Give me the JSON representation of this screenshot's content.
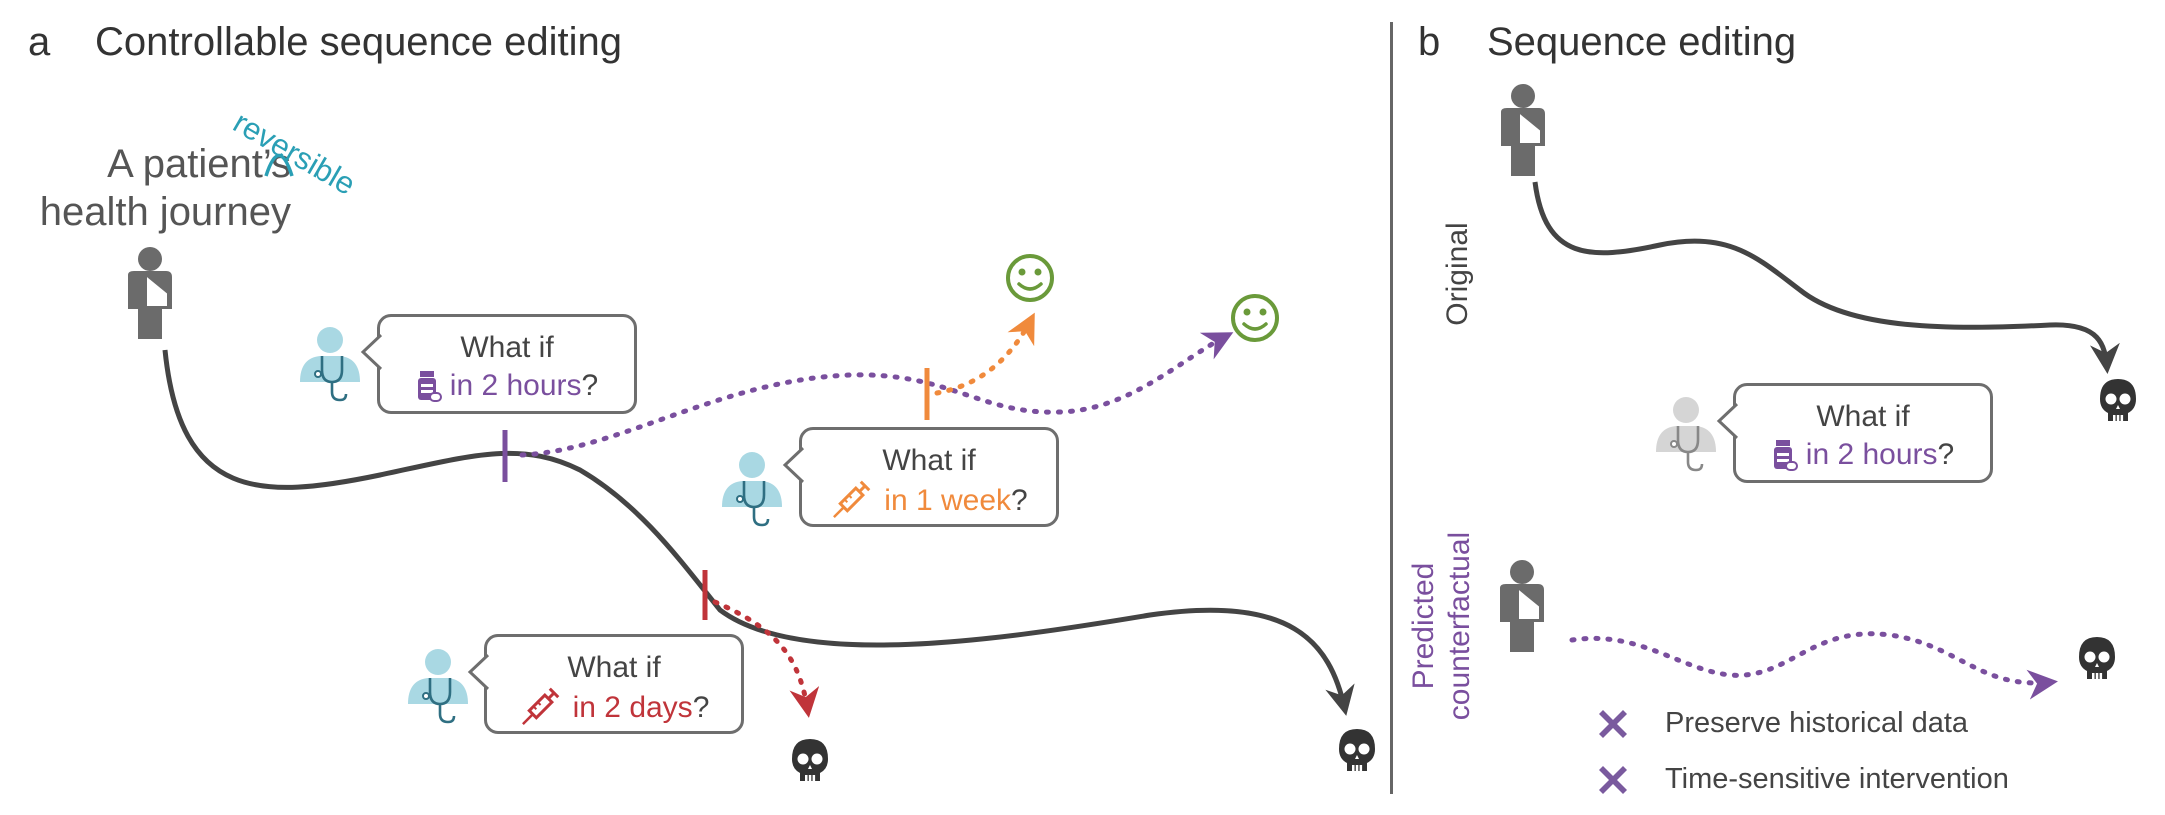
{
  "panel_a": {
    "letter": "a",
    "title": "Controllable sequence editing",
    "journey_line1": "A patient’s",
    "journey_line2": "health journey",
    "reversible": "reversible",
    "bubbles": [
      {
        "what_if": "What if",
        "timing": "in 2 hours",
        "q": "?",
        "icon": "medication-bottle-icon",
        "color": "#7a4f9e"
      },
      {
        "what_if": "What if",
        "timing": "in 1 week",
        "q": "?",
        "icon": "syringe-icon",
        "color": "#f08a3c"
      },
      {
        "what_if": "What if",
        "timing": "in 2 days",
        "q": "?",
        "icon": "syringe-icon",
        "color": "#c0343a"
      }
    ]
  },
  "panel_b": {
    "letter": "b",
    "title": "Sequence editing",
    "original_label": "Original",
    "predicted_label_line1": "Predicted",
    "predicted_label_line2": "counterfactual",
    "bubble": {
      "what_if": "What if",
      "timing": "in 2 hours",
      "q": "?",
      "icon": "medication-bottle-icon",
      "color": "#7a4f9e"
    },
    "legend": [
      {
        "text": "Preserve historical data",
        "icon": "x-mark-icon"
      },
      {
        "text": "Time-sensitive intervention",
        "icon": "x-mark-icon"
      }
    ]
  },
  "colors": {
    "trajectory": "#444444",
    "purple": "#7a4f9e",
    "orange": "#f08a3c",
    "red": "#c0343a",
    "green": "#6a9a3a",
    "teal": "#2a9fb5",
    "doctor": "#a9d8e3"
  }
}
